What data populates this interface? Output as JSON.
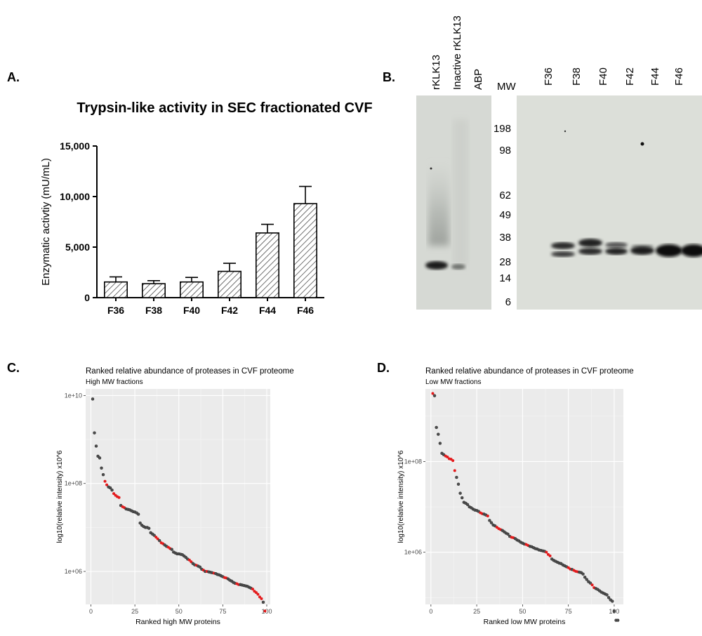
{
  "panels": {
    "a": "A.",
    "b": "B.",
    "c": "C.",
    "d": "D."
  },
  "panel_b": {
    "left_lanes": [
      "rKLK13",
      "Inactive rKLK13",
      "ABP"
    ],
    "mw_header": "MW",
    "right_lanes": [
      "F36",
      "F38",
      "F40",
      "F42",
      "F44",
      "F46"
    ],
    "mw_markers": [
      "198",
      "98",
      "62",
      "49",
      "38",
      "28",
      "14",
      "6"
    ]
  },
  "chart_data": [
    {
      "type": "bar",
      "title": "Trypsin-like activity in SEC fractionated CVF",
      "xlabel": "",
      "ylabel": "Enzymatic activtiy (mU/mL)",
      "categories": [
        "F36",
        "F38",
        "F40",
        "F42",
        "F44",
        "F46"
      ],
      "values": [
        1550,
        1380,
        1550,
        2600,
        6400,
        9300
      ],
      "errors": [
        500,
        300,
        450,
        800,
        850,
        1700
      ],
      "ylim": [
        0,
        15000
      ],
      "yticks": [
        "0",
        "5,000",
        "10,000",
        "15,000"
      ],
      "grid": false
    },
    {
      "type": "scatter",
      "title": "Ranked relative abundance of proteases in CVF proteome",
      "subtitle": "High MW fractions",
      "xlabel": "Ranked high MW proteins",
      "ylabel": "log10(relative intensity) x10^6",
      "xlim": [
        -3,
        102
      ],
      "ylim_log10": [
        5.25,
        10.15
      ],
      "xticks": [
        "0",
        "25",
        "50",
        "75",
        "100"
      ],
      "yticks": [
        "1e+06",
        "1e+08",
        "1e+10"
      ],
      "highlight_color": "#e41a1c",
      "point_color": "#4d4d4d",
      "grid": true,
      "x": [
        1,
        2,
        3,
        4,
        5,
        6,
        7,
        8,
        9,
        10,
        11,
        12,
        13,
        14,
        15,
        16,
        17,
        18,
        19,
        20,
        21,
        22,
        23,
        24,
        25,
        26,
        27,
        28,
        29,
        30,
        31,
        32,
        33,
        34,
        35,
        36,
        37,
        38,
        39,
        40,
        41,
        42,
        43,
        44,
        45,
        46,
        47,
        48,
        49,
        50,
        51,
        52,
        53,
        54,
        55,
        56,
        57,
        58,
        59,
        60,
        61,
        62,
        63,
        64,
        65,
        66,
        67,
        68,
        69,
        70,
        71,
        72,
        73,
        74,
        75,
        76,
        77,
        78,
        79,
        80,
        81,
        82,
        83,
        84,
        85,
        86,
        87,
        88,
        89,
        90,
        91,
        92,
        93,
        94,
        95,
        96,
        97,
        98,
        99
      ],
      "log10_intensity": [
        9.92,
        9.15,
        8.85,
        8.62,
        8.58,
        8.35,
        8.2,
        8.05,
        7.97,
        7.92,
        7.9,
        7.85,
        7.77,
        7.73,
        7.7,
        7.68,
        7.5,
        7.47,
        7.45,
        7.42,
        7.41,
        7.4,
        7.38,
        7.36,
        7.35,
        7.33,
        7.3,
        7.1,
        7.05,
        7.02,
        7.0,
        7.0,
        6.98,
        6.88,
        6.85,
        6.82,
        6.78,
        6.74,
        6.7,
        6.65,
        6.63,
        6.6,
        6.57,
        6.55,
        6.52,
        6.5,
        6.44,
        6.42,
        6.4,
        6.4,
        6.39,
        6.38,
        6.35,
        6.32,
        6.28,
        6.26,
        6.22,
        6.18,
        6.15,
        6.14,
        6.12,
        6.1,
        6.05,
        6.03,
        6.0,
        6.0,
        5.99,
        5.98,
        5.97,
        5.96,
        5.95,
        5.93,
        5.92,
        5.9,
        5.88,
        5.86,
        5.85,
        5.83,
        5.8,
        5.78,
        5.75,
        5.73,
        5.72,
        5.7,
        5.7,
        5.69,
        5.68,
        5.67,
        5.66,
        5.64,
        5.62,
        5.6,
        5.55,
        5.52,
        5.48,
        5.42,
        5.38,
        5.3,
        5.1
      ],
      "highlighted_x": [
        8,
        9,
        13,
        14,
        15,
        16,
        18,
        19,
        37,
        38,
        40,
        41,
        44,
        45,
        56,
        57,
        60,
        64,
        66,
        70,
        76,
        77,
        83,
        84,
        92,
        93,
        94,
        95,
        96,
        97,
        99
      ]
    },
    {
      "type": "scatter",
      "title": "Ranked relative abundance of proteases in CVF proteome",
      "subtitle": "Low MW fractions",
      "xlabel": "Ranked low MW proteins",
      "ylabel": "log10(relative intensity) x10^6",
      "xlim": [
        -3,
        105
      ],
      "ylim_log10": [
        4.85,
        9.6
      ],
      "xticks": [
        "0",
        "25",
        "50",
        "75",
        "100"
      ],
      "yticks": [
        "1e+06",
        "1e+08"
      ],
      "highlight_color": "#e41a1c",
      "point_color": "#4d4d4d",
      "grid": true,
      "x": [
        1,
        2,
        3,
        4,
        5,
        6,
        7,
        8,
        9,
        10,
        11,
        12,
        13,
        14,
        15,
        16,
        17,
        18,
        19,
        20,
        21,
        22,
        23,
        24,
        25,
        26,
        27,
        28,
        29,
        30,
        31,
        32,
        33,
        34,
        35,
        36,
        37,
        38,
        39,
        40,
        41,
        42,
        43,
        44,
        45,
        46,
        47,
        48,
        49,
        50,
        51,
        52,
        53,
        54,
        55,
        56,
        57,
        58,
        59,
        60,
        61,
        62,
        63,
        64,
        65,
        66,
        67,
        68,
        69,
        70,
        71,
        72,
        73,
        74,
        75,
        76,
        77,
        78,
        79,
        80,
        81,
        82,
        83,
        84,
        85,
        86,
        87,
        88,
        89,
        90,
        91,
        92,
        93,
        94,
        95,
        96,
        97,
        98,
        99,
        100,
        101,
        102
      ],
      "log10_intensity": [
        9.5,
        9.45,
        8.75,
        8.6,
        8.4,
        8.18,
        8.15,
        8.12,
        8.1,
        8.06,
        8.05,
        8.02,
        7.8,
        7.65,
        7.5,
        7.3,
        7.2,
        7.1,
        7.08,
        7.05,
        7.0,
        6.98,
        6.95,
        6.93,
        6.92,
        6.9,
        6.87,
        6.85,
        6.84,
        6.82,
        6.8,
        6.7,
        6.65,
        6.6,
        6.58,
        6.55,
        6.52,
        6.5,
        6.48,
        6.45,
        6.42,
        6.4,
        6.35,
        6.33,
        6.32,
        6.3,
        6.27,
        6.25,
        6.22,
        6.2,
        6.18,
        6.17,
        6.15,
        6.13,
        6.12,
        6.1,
        6.08,
        6.07,
        6.05,
        6.04,
        6.03,
        6.02,
        6.0,
        5.95,
        5.92,
        5.85,
        5.82,
        5.8,
        5.78,
        5.76,
        5.75,
        5.72,
        5.7,
        5.68,
        5.66,
        5.63,
        5.62,
        5.6,
        5.58,
        5.57,
        5.56,
        5.55,
        5.52,
        5.45,
        5.4,
        5.35,
        5.32,
        5.28,
        5.22,
        5.2,
        5.18,
        5.15,
        5.12,
        5.1,
        5.08,
        5.06,
        5.0,
        4.95,
        4.92,
        4.7,
        4.5,
        4.5
      ],
      "highlighted_x": [
        1,
        8,
        9,
        10,
        11,
        12,
        13,
        27,
        28,
        31,
        36,
        37,
        38,
        44,
        45,
        52,
        53,
        63,
        64,
        65,
        75,
        76,
        78,
        79,
        80,
        88,
        89
      ]
    }
  ]
}
